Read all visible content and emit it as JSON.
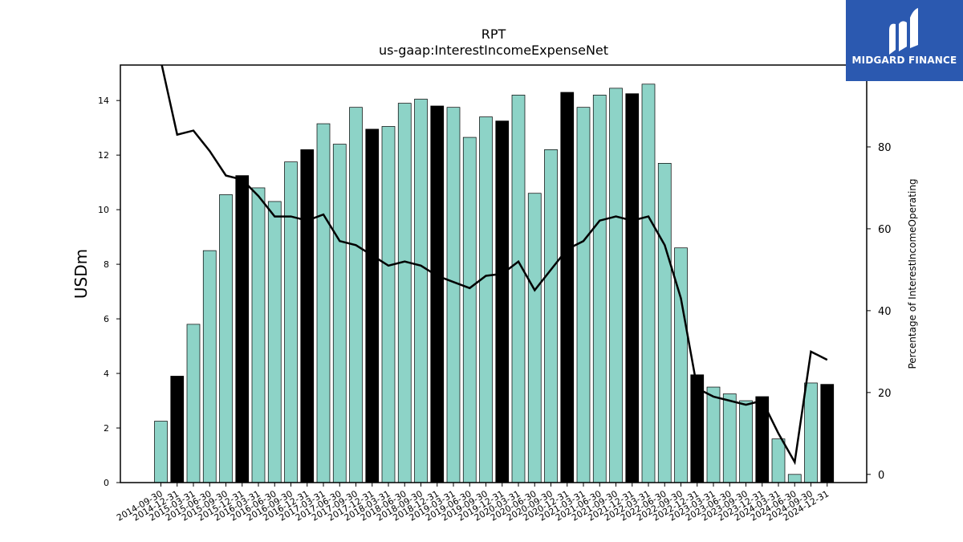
{
  "chart_data": {
    "type": "bar",
    "title": "RPT",
    "subtitle": "us-gaap:InterestIncomeExpenseNet",
    "ylabel": "USDm",
    "y2label": "Percentage of InterestIncomeOperating",
    "ylim": [
      0,
      15.3
    ],
    "y2lim": [
      -2,
      100
    ],
    "yticks": [
      0,
      2,
      4,
      6,
      8,
      10,
      12,
      14
    ],
    "y2ticks": [
      0,
      20,
      40,
      60,
      80
    ],
    "categories": [
      "2014-09-30",
      "2014-12-31",
      "2015-03-31",
      "2015-06-30",
      "2015-09-30",
      "2015-12-31",
      "2016-03-31",
      "2016-06-30",
      "2016-09-30",
      "2016-12-31",
      "2017-03-31",
      "2017-06-30",
      "2017-09-30",
      "2017-12-31",
      "2018-03-31",
      "2018-06-30",
      "2018-09-30",
      "2018-12-31",
      "2019-03-31",
      "2019-06-30",
      "2019-09-30",
      "2019-12-31",
      "2020-03-31",
      "2020-06-30",
      "2020-09-30",
      "2020-12-31",
      "2021-03-31",
      "2021-06-30",
      "2021-09-30",
      "2021-12-31",
      "2022-03-31",
      "2022-06-30",
      "2022-09-30",
      "2022-12-31",
      "2023-03-31",
      "2023-06-30",
      "2023-09-30",
      "2023-12-31",
      "2024-03-31",
      "2024-06-30",
      "2024-09-30",
      "2024-12-31"
    ],
    "series": [
      {
        "kind": "bar",
        "values": [
          2.25,
          3.9,
          5.8,
          8.5,
          10.55,
          11.25,
          10.8,
          10.3,
          11.75,
          12.2,
          13.15,
          12.4,
          13.75,
          12.95,
          13.05,
          13.9,
          14.05,
          13.8,
          13.75,
          12.65,
          13.4,
          13.25,
          14.2,
          10.6,
          12.2,
          14.3,
          13.75,
          14.2,
          14.45,
          14.25,
          14.6,
          11.7,
          8.6,
          3.95,
          3.5,
          3.25,
          3.0,
          3.15,
          1.6,
          0.3,
          3.65,
          3.6
        ],
        "colors": [
          "#8dd3c7",
          "#000000",
          "#8dd3c7",
          "#8dd3c7",
          "#8dd3c7",
          "#000000",
          "#8dd3c7",
          "#8dd3c7",
          "#8dd3c7",
          "#000000",
          "#8dd3c7",
          "#8dd3c7",
          "#8dd3c7",
          "#000000",
          "#8dd3c7",
          "#8dd3c7",
          "#8dd3c7",
          "#000000",
          "#8dd3c7",
          "#8dd3c7",
          "#8dd3c7",
          "#000000",
          "#8dd3c7",
          "#8dd3c7",
          "#8dd3c7",
          "#000000",
          "#8dd3c7",
          "#8dd3c7",
          "#8dd3c7",
          "#000000",
          "#8dd3c7",
          "#8dd3c7",
          "#8dd3c7",
          "#000000",
          "#8dd3c7",
          "#8dd3c7",
          "#8dd3c7",
          "#000000",
          "#8dd3c7",
          "#8dd3c7",
          "#8dd3c7",
          "#000000"
        ]
      },
      {
        "kind": "line",
        "axis": "right",
        "color": "#000000",
        "values": [
          101,
          83,
          84,
          79,
          73,
          72,
          68,
          63,
          63,
          62,
          63.5,
          57,
          56,
          53.5,
          51,
          52,
          51,
          48.5,
          47,
          45.5,
          48.5,
          49,
          52,
          45,
          50,
          55,
          57,
          62,
          63,
          62,
          63,
          56,
          43,
          21,
          19,
          18,
          17,
          18,
          10,
          3,
          30,
          28
        ]
      }
    ]
  },
  "logo": {
    "text": "MIDGARD FINANCE",
    "bg_color": "#2b59b0",
    "icon": "midgard-logo-icon"
  }
}
